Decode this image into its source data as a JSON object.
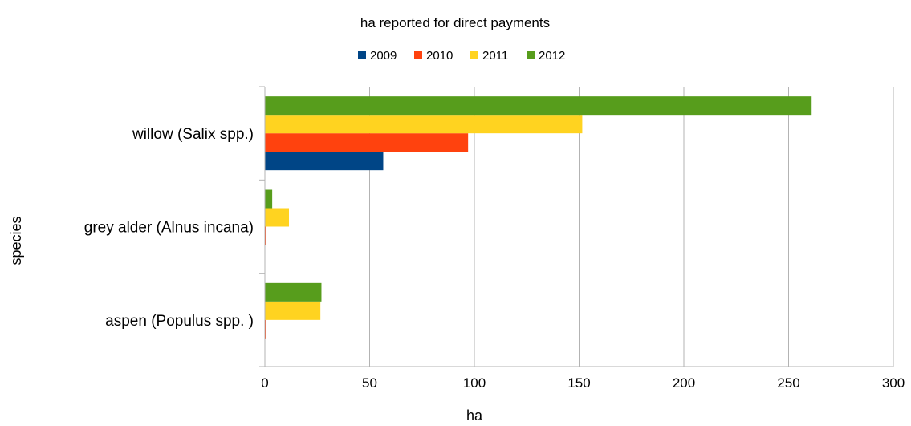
{
  "chart_data": {
    "type": "bar",
    "orientation": "horizontal",
    "title": "ha reported for direct payments",
    "xlabel": "ha",
    "ylabel": "species",
    "categories": [
      "willow (Salix spp.)",
      "grey alder (Alnus incana)",
      "aspen (Populus spp. )"
    ],
    "series": [
      {
        "name": "2009",
        "color": "#004586",
        "values": [
          56.5,
          0,
          0
        ]
      },
      {
        "name": "2010",
        "color": "#ff420e",
        "values": [
          97,
          0.4,
          0.7
        ]
      },
      {
        "name": "2011",
        "color": "#ffd320",
        "values": [
          151.5,
          11.5,
          26.5
        ]
      },
      {
        "name": "2012",
        "color": "#579d1c",
        "values": [
          261,
          3.5,
          27
        ]
      }
    ],
    "xlim": [
      0,
      300
    ],
    "xticks": [
      "0",
      "50",
      "100",
      "150",
      "200",
      "250",
      "300"
    ],
    "grid": true,
    "legend_position": "top"
  }
}
